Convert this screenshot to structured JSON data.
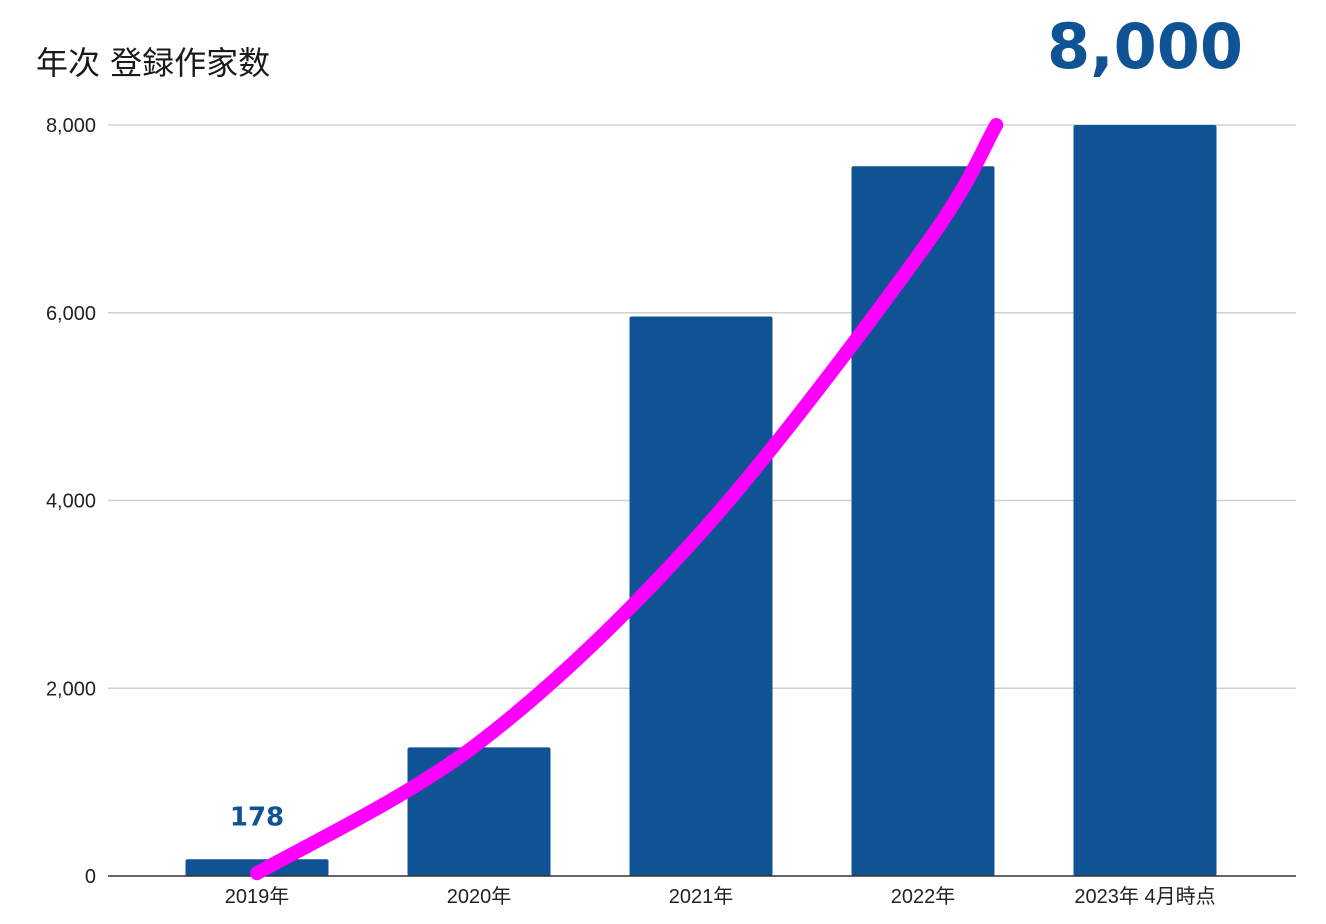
{
  "chart_data": {
    "type": "bar",
    "title": "年次 登録作家数",
    "categories": [
      "2019年",
      "2020年",
      "2021年",
      "2022年",
      "2023年 4月時点"
    ],
    "values": [
      178,
      1370,
      5960,
      7560,
      8000
    ],
    "ylim": [
      0,
      8000
    ],
    "yticks": [
      0,
      2000,
      4000,
      6000,
      8000
    ],
    "ytick_labels": [
      "0",
      "2,000",
      "4,000",
      "6,000",
      "8,000"
    ],
    "grid": true,
    "bar_color": "#0f5394",
    "data_labels": [
      {
        "category": "2019年",
        "text": "178",
        "size": "small"
      },
      {
        "category": "2023年 4月時点",
        "text": "8,000",
        "size": "large"
      }
    ],
    "trend_curve": {
      "color": "#ff00ff",
      "points": [
        {
          "x": "2019年",
          "y": 30
        },
        {
          "x": "2020年",
          "y": 1420
        },
        {
          "x": "2021年",
          "y": 3660
        },
        {
          "x": "2022年",
          "y": 6680
        },
        {
          "x_between": [
            "2022年",
            "2023年 4月時点"
          ],
          "fraction": 0.33,
          "y": 8000
        }
      ]
    }
  }
}
